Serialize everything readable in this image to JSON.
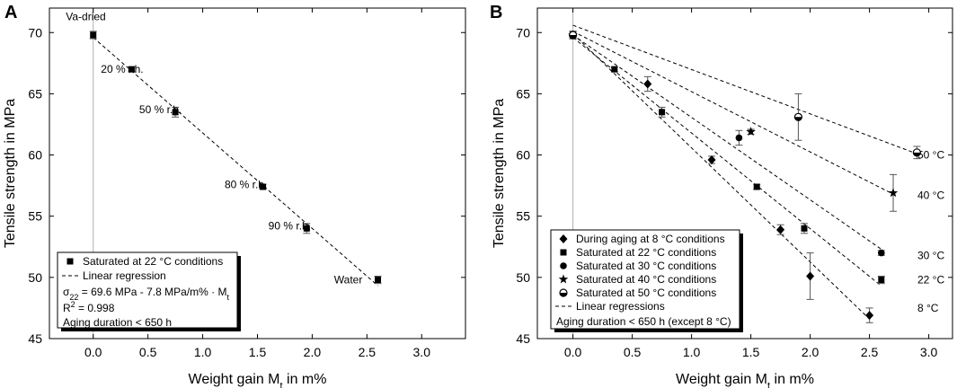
{
  "chart_data": [
    {
      "panel": "A",
      "type": "scatter",
      "xlabel_main": "Weight gain M",
      "xlabel_sub": "t",
      "xlabel_tail": " in m%",
      "ylabel": "Tensile strength in MPa",
      "xlim": [
        -0.4,
        3.4
      ],
      "ylim": [
        45,
        72
      ],
      "xticks": [
        "0.0",
        "0.5",
        "1.0",
        "1.5",
        "2.0",
        "2.5",
        "3.0"
      ],
      "xtick_values": [
        0,
        0.5,
        1,
        1.5,
        2,
        2.5,
        3
      ],
      "yticks": [
        "45",
        "50",
        "55",
        "60",
        "65",
        "70"
      ],
      "ytick_values": [
        45,
        50,
        55,
        60,
        65,
        70
      ],
      "series": [
        {
          "name": "Saturated at 22 °C conditions",
          "marker": "square",
          "points": [
            {
              "x": 0.0,
              "y": 69.8,
              "err": 0.3
            },
            {
              "x": 0.35,
              "y": 67.0,
              "err": 0.2
            },
            {
              "x": 0.75,
              "y": 63.5,
              "err": 0.4
            },
            {
              "x": 1.55,
              "y": 57.4,
              "err": 0.2
            },
            {
              "x": 1.95,
              "y": 54.0,
              "err": 0.4
            },
            {
              "x": 2.6,
              "y": 49.8,
              "err": 0.3
            }
          ]
        }
      ],
      "regression": {
        "x": [
          0,
          2.6
        ],
        "y": [
          69.6,
          49.32
        ]
      },
      "annotations": [
        {
          "text": "Va-dried",
          "x": -0.25,
          "y": 71.0
        },
        {
          "text": "20 % r.h.",
          "x": 0.07,
          "y": 66.7
        },
        {
          "text": "50 % r.h.",
          "x": 0.42,
          "y": 63.4
        },
        {
          "text": "80 % r.h.",
          "x": 1.2,
          "y": 57.3
        },
        {
          "text": "90 % r.h.",
          "x": 1.6,
          "y": 53.9
        },
        {
          "text": "Water",
          "x": 2.2,
          "y": 49.5
        }
      ],
      "legend": {
        "position": "bottom-left",
        "entries": [
          {
            "marker": "square",
            "label": "Saturated at 22 °C conditions"
          },
          {
            "marker": "dash",
            "label": "Linear regression"
          }
        ],
        "formula": {
          "sigma": "σ",
          "sigma_sub": "22",
          "text": " = 69.6 MPa - 7.8 MPa/m% · M",
          "tail_sub": "t"
        },
        "r2": {
          "r": "R",
          "sup": "2",
          "text": " = 0.998"
        },
        "note": "Aging duration < 650 h"
      }
    },
    {
      "panel": "B",
      "type": "scatter",
      "xlabel_main": "Weight gain M",
      "xlabel_sub": "t",
      "xlabel_tail": " in m%",
      "ylabel": "Tensile strength in MPa",
      "xlim": [
        -0.3,
        3.2
      ],
      "ylim": [
        45,
        72
      ],
      "xticks": [
        "0.0",
        "0.5",
        "1.0",
        "1.5",
        "2.0",
        "2.5",
        "3.0"
      ],
      "xtick_values": [
        0,
        0.5,
        1,
        1.5,
        2,
        2.5,
        3
      ],
      "yticks": [
        "45",
        "50",
        "55",
        "60",
        "65",
        "70"
      ],
      "ytick_values": [
        45,
        50,
        55,
        60,
        65,
        70
      ],
      "series": [
        {
          "name": "During aging at 8 °C conditions",
          "marker": "diamond",
          "points": [
            {
              "x": 0.0,
              "y": 69.8,
              "err": 0.3
            },
            {
              "x": 0.63,
              "y": 65.8,
              "err": 0.6
            },
            {
              "x": 1.17,
              "y": 59.6,
              "err": 0.3
            },
            {
              "x": 1.75,
              "y": 53.9,
              "err": 0.4
            },
            {
              "x": 2.0,
              "y": 50.1,
              "err": 1.9
            },
            {
              "x": 2.5,
              "y": 46.9,
              "err": 0.6
            }
          ]
        },
        {
          "name": "Saturated at 22 °C conditions",
          "marker": "square",
          "points": [
            {
              "x": 0.0,
              "y": 69.8,
              "err": 0.3
            },
            {
              "x": 0.35,
              "y": 67.0,
              "err": 0.2
            },
            {
              "x": 0.75,
              "y": 63.5,
              "err": 0.4
            },
            {
              "x": 1.55,
              "y": 57.4,
              "err": 0.2
            },
            {
              "x": 1.95,
              "y": 54.0,
              "err": 0.4
            },
            {
              "x": 2.6,
              "y": 49.8,
              "err": 0.3
            }
          ]
        },
        {
          "name": "Saturated at 30 °C conditions",
          "marker": "circle",
          "points": [
            {
              "x": 0.0,
              "y": 69.8,
              "err": 0.3
            },
            {
              "x": 1.4,
              "y": 61.4,
              "err": 0.6
            },
            {
              "x": 2.6,
              "y": 52.0,
              "err": 0.2
            }
          ]
        },
        {
          "name": "Saturated at 40 °C conditions",
          "marker": "star",
          "points": [
            {
              "x": 0.0,
              "y": 69.8,
              "err": 0.3
            },
            {
              "x": 1.5,
              "y": 61.9,
              "err": 0.2
            },
            {
              "x": 2.7,
              "y": 56.9,
              "err": 1.5
            }
          ]
        },
        {
          "name": "Saturated at 50 °C conditions",
          "marker": "halfcircle",
          "points": [
            {
              "x": 0.0,
              "y": 69.8,
              "err": 0.3
            },
            {
              "x": 1.9,
              "y": 63.1,
              "err": 1.9
            },
            {
              "x": 2.9,
              "y": 60.2,
              "err": 0.5
            }
          ]
        }
      ],
      "regressions": [
        {
          "label": "8 °C",
          "x": [
            0,
            2.5
          ],
          "y": [
            69.9,
            46.6
          ],
          "label_y": 47.5
        },
        {
          "label": "22 °C",
          "x": [
            0,
            2.6
          ],
          "y": [
            69.6,
            49.3
          ],
          "label_y": 49.8
        },
        {
          "label": "30 °C",
          "x": [
            0,
            2.6
          ],
          "y": [
            69.8,
            52.3
          ],
          "label_y": 51.8
        },
        {
          "label": "40 °C",
          "x": [
            0,
            2.7
          ],
          "y": [
            70.1,
            56.8
          ],
          "label_y": 56.7
        },
        {
          "label": "50 °C",
          "x": [
            0,
            2.9
          ],
          "y": [
            70.6,
            60.1
          ],
          "label_y": 60.0
        }
      ],
      "legend": {
        "position": "bottom-left",
        "entries": [
          {
            "marker": "diamond",
            "label": "During aging at 8 °C conditions"
          },
          {
            "marker": "square",
            "label": "Saturated at 22 °C conditions"
          },
          {
            "marker": "circle",
            "label": "Saturated at 30 °C conditions"
          },
          {
            "marker": "star",
            "label": "Saturated at 40 °C conditions"
          },
          {
            "marker": "halfcircle",
            "label": "Saturated at 50 °C conditions"
          },
          {
            "marker": "dash",
            "label": "Linear regressions"
          }
        ],
        "note": "Aging duration < 650 h (except 8 °C)"
      }
    }
  ]
}
